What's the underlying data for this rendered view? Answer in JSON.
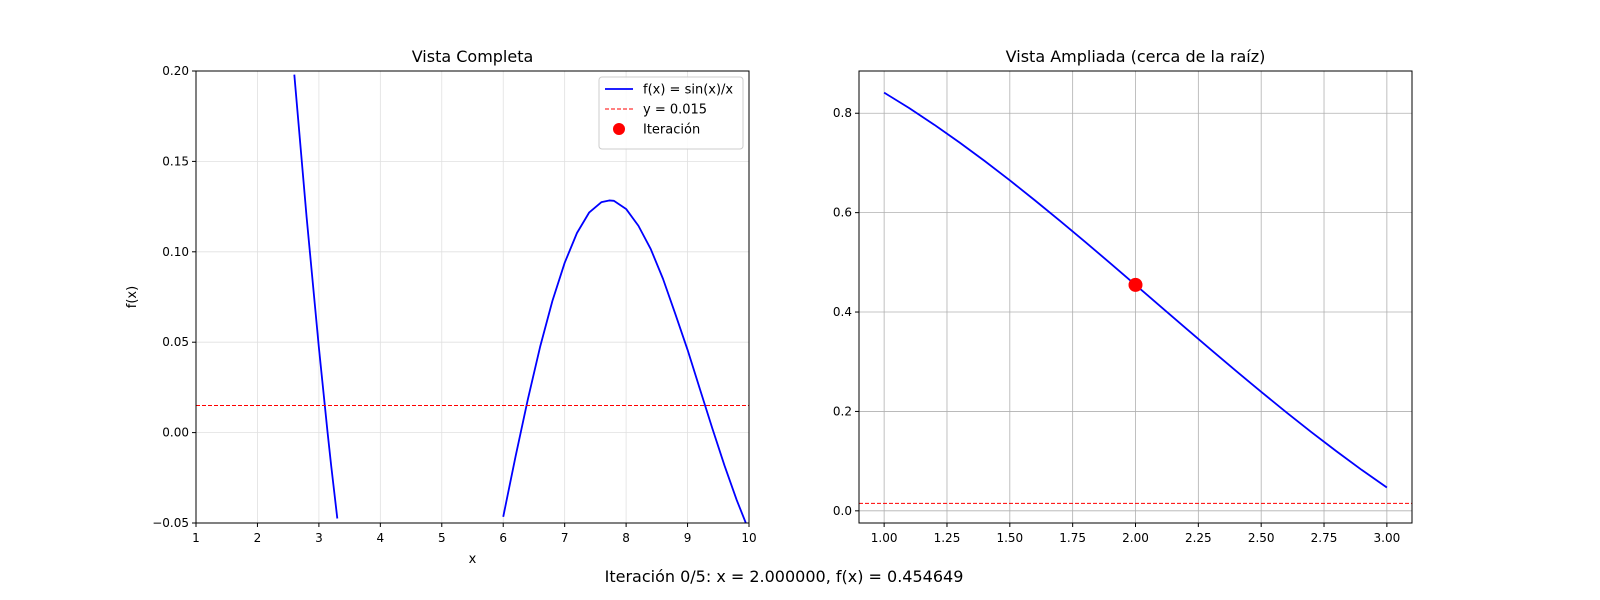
{
  "figure": {
    "suptitle": "Iteración 0/5: x = 2.000000, f(x) = 0.454649"
  },
  "chart_data": [
    {
      "type": "line",
      "title": "Vista Completa",
      "xlabel": "x",
      "ylabel": "f(x)",
      "xlim": [
        1,
        10
      ],
      "ylim": [
        -0.05,
        0.2
      ],
      "xticks": [
        1,
        2,
        3,
        4,
        5,
        6,
        7,
        8,
        9,
        10
      ],
      "yticks": [
        -0.05,
        0.0,
        0.05,
        0.1,
        0.15,
        0.2
      ],
      "xtick_labels": [
        "1",
        "2",
        "3",
        "4",
        "5",
        "6",
        "7",
        "8",
        "9",
        "10"
      ],
      "ytick_labels": [
        "−0.05",
        "0.00",
        "0.05",
        "0.10",
        "0.15",
        "0.20"
      ],
      "grid": true,
      "legend_position": "top-right",
      "series": [
        {
          "name": "f(x) = sin(x)/x",
          "kind": "line",
          "color": "#0000ff",
          "x": [
            2.6,
            2.8,
            3.0,
            3.1416,
            3.2,
            3.3,
            6.0,
            6.2,
            6.4,
            6.6,
            6.8,
            7.0,
            7.2,
            7.4,
            7.6,
            7.725,
            7.8,
            8.0,
            8.2,
            8.4,
            8.6,
            8.8,
            9.0,
            9.2,
            9.4,
            9.6,
            9.8,
            10.0
          ],
          "y": [
            0.198,
            0.1192,
            0.047,
            0.0,
            -0.0183,
            -0.0475,
            -0.0466,
            -0.0133,
            0.0183,
            0.0474,
            0.0728,
            0.0939,
            0.1104,
            0.1218,
            0.1275,
            0.1284,
            0.1282,
            0.1237,
            0.1144,
            0.1016,
            0.0851,
            0.0657,
            0.0458,
            0.0242,
            0.0027,
            -0.0181,
            -0.0373,
            -0.0544
          ]
        },
        {
          "name": "y = 0.015",
          "kind": "hline",
          "color": "#ff0000",
          "dashed": true,
          "y": 0.015
        },
        {
          "name": "Iteración",
          "kind": "marker",
          "color": "#ff0000",
          "x": [],
          "y": []
        }
      ]
    },
    {
      "type": "line",
      "title": "Vista Ampliada (cerca de la raíz)",
      "xlabel": "",
      "ylabel": "",
      "xlim": [
        0.9,
        3.1
      ],
      "ylim": [
        -0.0245,
        0.885
      ],
      "xticks": [
        1.0,
        1.25,
        1.5,
        1.75,
        2.0,
        2.25,
        2.5,
        2.75,
        3.0
      ],
      "yticks": [
        0.0,
        0.2,
        0.4,
        0.6,
        0.8
      ],
      "xtick_labels": [
        "1.00",
        "1.25",
        "1.50",
        "1.75",
        "2.00",
        "2.25",
        "2.50",
        "2.75",
        "3.00"
      ],
      "ytick_labels": [
        "0.0",
        "0.2",
        "0.4",
        "0.6",
        "0.8"
      ],
      "grid": true,
      "series": [
        {
          "name": "",
          "kind": "line",
          "color": "#0000ff",
          "x": [
            1.0,
            1.1,
            1.2,
            1.3,
            1.4,
            1.5,
            1.6,
            1.7,
            1.8,
            1.9,
            2.0,
            2.1,
            2.2,
            2.3,
            2.4,
            2.5,
            2.6,
            2.7,
            2.8,
            2.9,
            3.0
          ],
          "y": [
            0.8415,
            0.8102,
            0.7767,
            0.7412,
            0.7039,
            0.665,
            0.6247,
            0.5833,
            0.541,
            0.4981,
            0.4546,
            0.411,
            0.3675,
            0.3242,
            0.2814,
            0.2394,
            0.1983,
            0.1583,
            0.1196,
            0.0823,
            0.047
          ]
        },
        {
          "name": "",
          "kind": "hline",
          "color": "#ff0000",
          "dashed": true,
          "y": 0.015
        },
        {
          "name": "",
          "kind": "marker",
          "color": "#ff0000",
          "x": [
            2.0
          ],
          "y": [
            0.454649
          ]
        }
      ]
    }
  ]
}
